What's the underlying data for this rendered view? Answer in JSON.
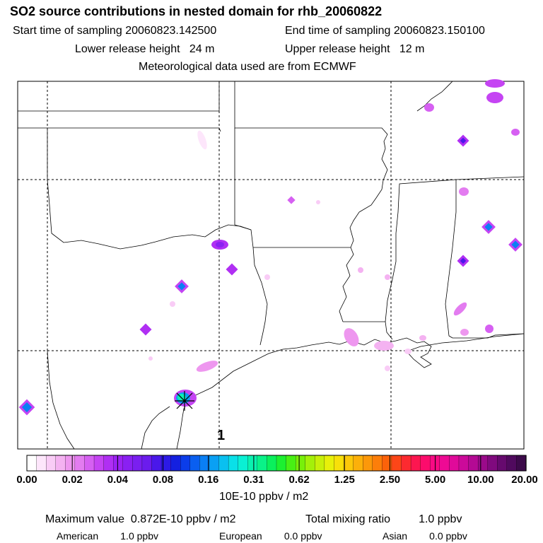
{
  "header": {
    "title": "SO2 source contributions in nested domain for rhb_20060822",
    "start_label": "Start time of sampling",
    "start_value": "20060823.142500",
    "end_label": "End time of sampling",
    "end_value": "20060823.150100",
    "lower_label": "Lower release height",
    "lower_value": "24 m",
    "upper_label": "Upper release height",
    "upper_value": "12 m",
    "met_line": "Meteorological data used are from ECMWF"
  },
  "map": {
    "marker_label": "1",
    "colors": {
      "border": "#000000",
      "grid": "#000000",
      "land": "#ffffff"
    }
  },
  "colorbar": {
    "ticks": [
      "0.00",
      "0.02",
      "0.04",
      "0.08",
      "0.16",
      "0.31",
      "0.62",
      "1.25",
      "2.50",
      "5.00",
      "10.00",
      "20.00"
    ],
    "colors": [
      "#ffffff",
      "#fde6fb",
      "#f9ccf6",
      "#f4b2f1",
      "#ee97ef",
      "#e37cf0",
      "#d660f2",
      "#c544f3",
      "#b02ff3",
      "#9b22f3",
      "#8a20f2",
      "#7a1ff0",
      "#6b1ced",
      "#4a18ea",
      "#2c1ae6",
      "#1420e0",
      "#0b3dea",
      "#0a5ff0",
      "#0a7ff4",
      "#0aa0f4",
      "#0ac0f0",
      "#0ae0e8",
      "#0af0d4",
      "#0af2b0",
      "#0af288",
      "#0af05c",
      "#1cf030",
      "#48f014",
      "#78f00a",
      "#a4f00a",
      "#c8f00a",
      "#e8f00a",
      "#f8e00a",
      "#fcc80a",
      "#fcb00a",
      "#fc980a",
      "#fc7e0a",
      "#fc620a",
      "#fc4618",
      "#fc2a30",
      "#fc1650",
      "#fc0c6c",
      "#f80a84",
      "#ee0a94",
      "#e00a9a",
      "#cc0a9a",
      "#b40a94",
      "#9a0a8a",
      "#800a7e",
      "#660a6e",
      "#500a5e",
      "#3c0a4a"
    ],
    "unit": "10E-10 ppbv / m2"
  },
  "footer": {
    "max_label": "Maximum value",
    "max_value": "0.872E-10 ppbv / m2",
    "total_label": "Total mixing ratio",
    "total_value": "1.0 ppbv",
    "sources": [
      {
        "name": "American",
        "value": "1.0 ppbv"
      },
      {
        "name": "European",
        "value": "0.0 ppbv"
      },
      {
        "name": "Asian",
        "value": "0.0 ppbv"
      }
    ]
  }
}
